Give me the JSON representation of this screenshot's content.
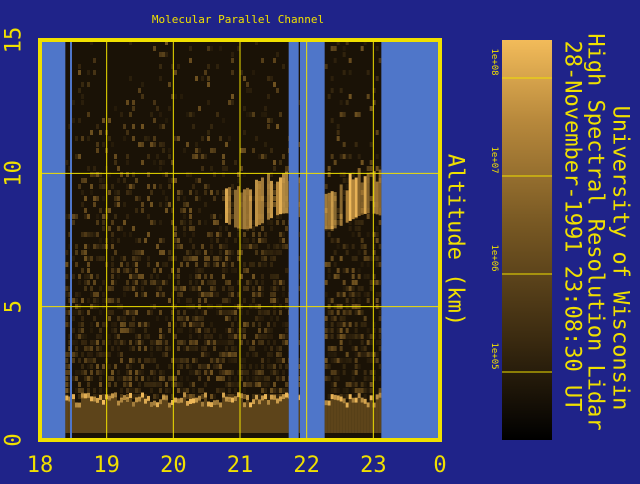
{
  "chart_data": {
    "type": "heatmap",
    "title": "Molecular Parallel Channel",
    "ylabel": "Altitude (km)",
    "xlim": [
      18,
      24
    ],
    "ylim": [
      0,
      15
    ],
    "x_ticks": [
      "18",
      "19",
      "20",
      "21",
      "22",
      "23",
      "0"
    ],
    "y_ticks": [
      "0",
      "5",
      "10",
      "15"
    ],
    "colorbar": {
      "ticks": [
        "1e+08",
        "1e+07",
        "1e+06",
        "1e+05"
      ],
      "scale": "log",
      "colormap": [
        "#000000",
        "#3a2a10",
        "#7a5a24",
        "#b8893c",
        "#f2bb5a"
      ]
    },
    "no_data_intervals": [
      [
        18.0,
        18.38
      ],
      [
        18.45,
        18.48
      ],
      [
        21.73,
        21.88
      ],
      [
        21.9,
        22.27
      ],
      [
        23.12,
        24.0
      ]
    ],
    "features": {
      "boundary_layer_top_km": 1.6,
      "cloud_layer_km": [
        8.2,
        9.4
      ],
      "cloud_span_hours": [
        20.7,
        23.1
      ]
    },
    "grid": true
  },
  "side_text": {
    "line1": "University of Wisconsin",
    "line2": "High Spectral Resolution Lidar",
    "line3": "28-November-1991 23:08:30 UT"
  },
  "colors": {
    "background": "#1f2389",
    "frame": "#f0e000",
    "no_data": "#4f76c9",
    "text": "#f0e000"
  }
}
